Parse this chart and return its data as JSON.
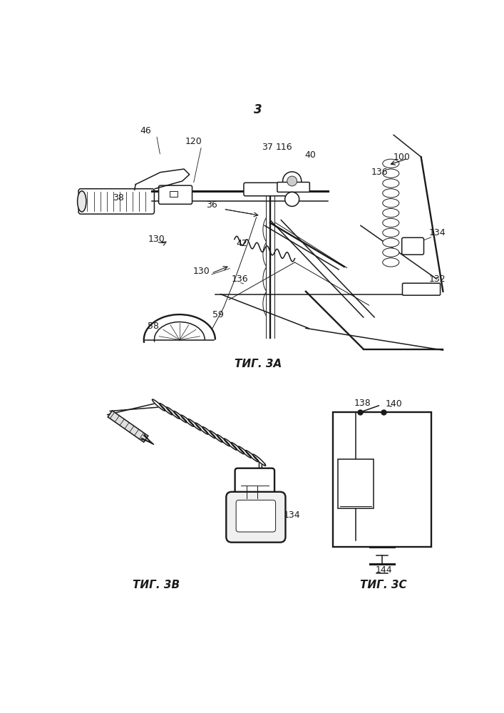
{
  "page_number": "3",
  "fig3a_label": "ΤИГ. 3А",
  "fig3b_label": "ΤИГ. 3В",
  "fig3c_label": "ΤИГ. 3C",
  "background_color": "#ffffff",
  "line_color": "#1a1a1a",
  "label_fontsize": 9,
  "title_fontsize": 11
}
